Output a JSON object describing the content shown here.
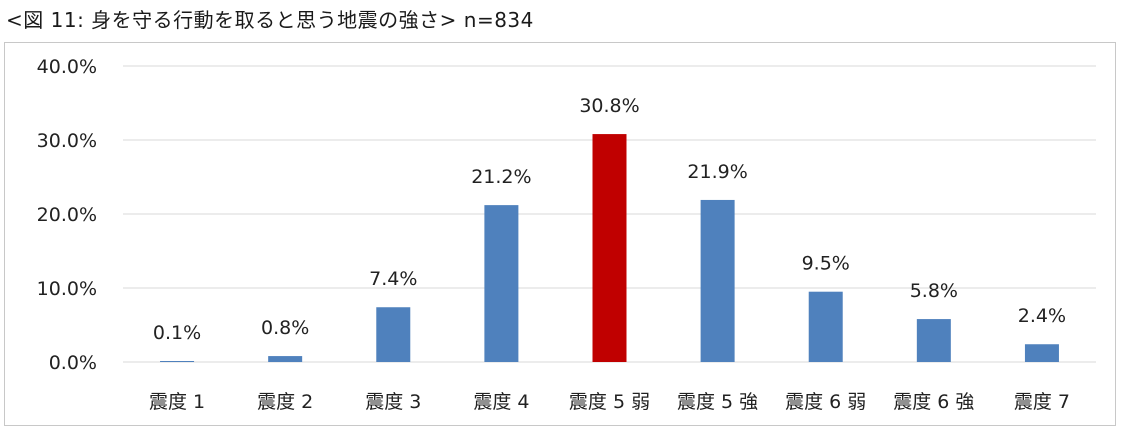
{
  "title": "<図 11: 身を守る行動を取ると思う地震の強さ> n=834",
  "chart_data": {
    "type": "bar",
    "categories": [
      "震度 1",
      "震度 2",
      "震度 3",
      "震度 4",
      "震度 5 弱",
      "震度 5 強",
      "震度 6 弱",
      "震度 6 強",
      "震度 7"
    ],
    "values": [
      0.1,
      0.8,
      7.4,
      21.2,
      30.8,
      21.9,
      9.5,
      5.8,
      2.4
    ],
    "data_labels": [
      "0.1%",
      "0.8%",
      "7.4%",
      "21.2%",
      "30.8%",
      "21.9%",
      "9.5%",
      "5.8%",
      "2.4%"
    ],
    "ylim": [
      0,
      40
    ],
    "yticks": [
      0,
      10,
      20,
      30,
      40
    ],
    "ytick_labels": [
      "0.0%",
      "10.0%",
      "20.0%",
      "30.0%",
      "40.0%"
    ],
    "grid": true,
    "colors": {
      "default": "#4f81bd",
      "highlight": "#c00000",
      "grid": "#d9d9d9"
    },
    "highlight_index": 4
  }
}
